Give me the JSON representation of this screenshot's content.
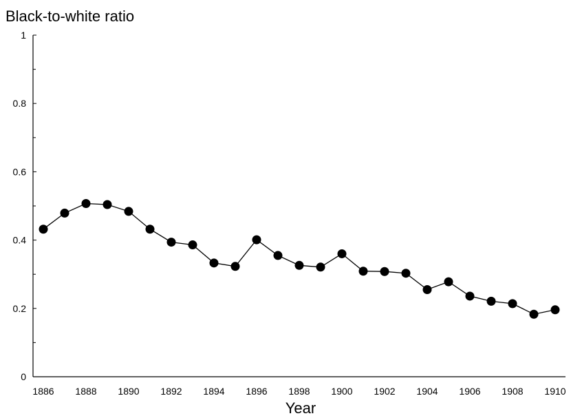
{
  "chart_data": {
    "type": "line",
    "title": "",
    "ylabel": "Black-to-white ratio",
    "xlabel": "Year",
    "xlim": [
      1886,
      1910
    ],
    "ylim": [
      0,
      1
    ],
    "x_ticks": [
      "1886",
      "1888",
      "1890",
      "1892",
      "1894",
      "1896",
      "1898",
      "1900",
      "1902",
      "1904",
      "1906",
      "1908",
      "1910"
    ],
    "y_ticks": [
      "0",
      "0.2",
      "0.4",
      "0.6",
      "0.8",
      "1"
    ],
    "grid": false,
    "legend": "none",
    "x": [
      1886,
      1887,
      1888,
      1889,
      1890,
      1891,
      1892,
      1893,
      1894,
      1895,
      1896,
      1897,
      1898,
      1899,
      1900,
      1901,
      1902,
      1903,
      1904,
      1905,
      1906,
      1907,
      1908,
      1909,
      1910
    ],
    "values": [
      0.432,
      0.479,
      0.507,
      0.504,
      0.484,
      0.432,
      0.394,
      0.386,
      0.333,
      0.323,
      0.401,
      0.355,
      0.326,
      0.321,
      0.36,
      0.309,
      0.308,
      0.303,
      0.255,
      0.278,
      0.236,
      0.221,
      0.214,
      0.183,
      0.196
    ]
  }
}
